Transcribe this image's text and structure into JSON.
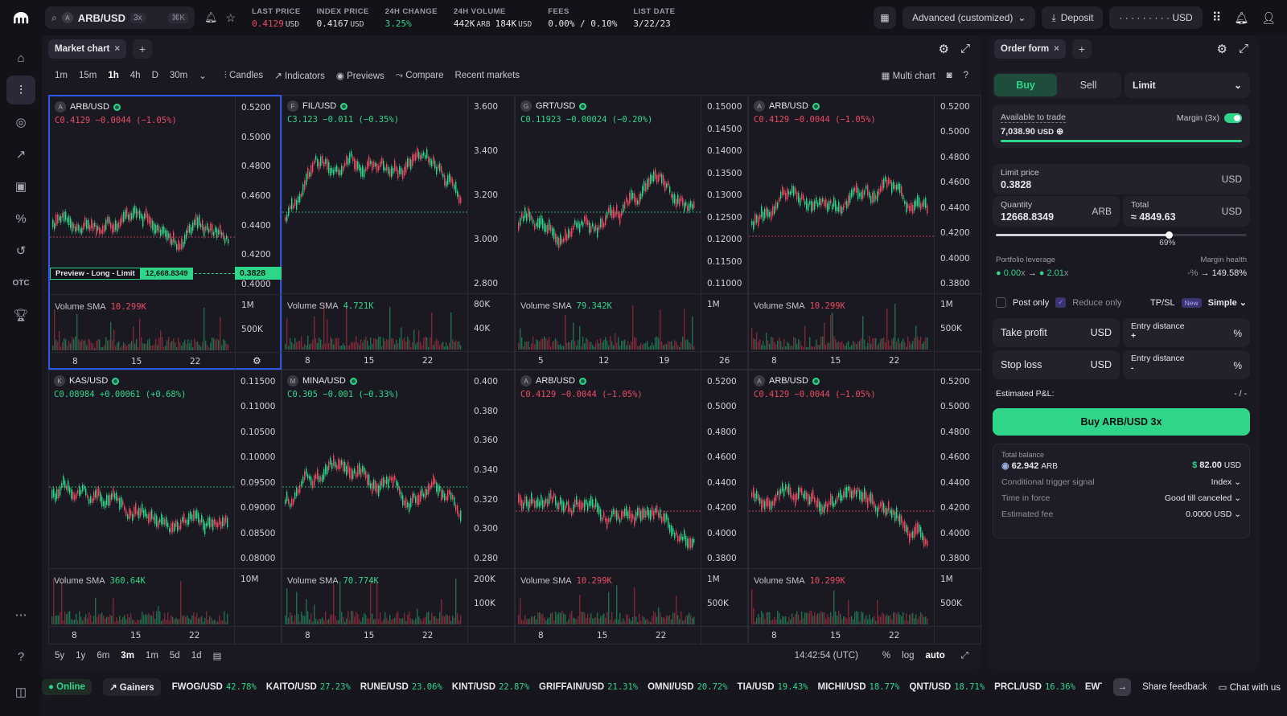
{
  "top": {
    "market": "ARB/USD",
    "leverage": "3x",
    "shortcut": "⌘K",
    "stats": [
      {
        "label": "LAST PRICE",
        "value": "0.4129",
        "unit": "USD",
        "cls": "red"
      },
      {
        "label": "INDEX PRICE",
        "value": "0.4167",
        "unit": "USD",
        "cls": ""
      },
      {
        "label": "24H CHANGE",
        "value": "3.25%",
        "unit": "",
        "cls": "green"
      },
      {
        "label": "24H VOLUME",
        "value": "442K",
        "unit": "ARB",
        "value2": "184K",
        "unit2": "USD",
        "cls": ""
      },
      {
        "label": "FEES",
        "value": "0.00% / 0.10%",
        "unit": "",
        "cls": ""
      },
      {
        "label": "LIST DATE",
        "value": "3/22/23",
        "unit": "",
        "cls": ""
      }
    ],
    "layout": "Advanced (customized)",
    "deposit": "Deposit",
    "balance": "· · · · · · · · · USD"
  },
  "chart": {
    "tab": "Market chart",
    "timeframes": [
      "1m",
      "15m",
      "1h",
      "4h",
      "D",
      "30m"
    ],
    "active_tf": "1h",
    "tools": [
      "Candles",
      "Indicators",
      "Previews",
      "Compare",
      "Recent markets"
    ],
    "multi": "Multi chart",
    "panes": [
      {
        "sym": "ARB/USD",
        "ohlc": "C0.4129 −0.0044 (−1.05%)",
        "cls": "red",
        "ticks": [
          "0.5200",
          "0.5000",
          "0.4800",
          "0.4600",
          "0.4400",
          "0.4200",
          "0.4000"
        ],
        "vol": "Volume SMA",
        "volv": "10.299K",
        "vcls": "red",
        "vticks": [
          "1M",
          "500K"
        ],
        "dates": [
          "8",
          "15",
          "22"
        ]
      },
      {
        "sym": "FIL/USD",
        "ohlc": "C3.123 −0.011 (−0.35%)",
        "cls": "green",
        "ticks": [
          "3.600",
          "3.400",
          "3.200",
          "3.000",
          "2.800"
        ],
        "vol": "Volume SMA",
        "volv": "4.721K",
        "vcls": "green",
        "vticks": [
          "80K",
          "40K"
        ],
        "dates": [
          "8",
          "15",
          "22"
        ]
      },
      {
        "sym": "GRT/USD",
        "ohlc": "C0.11923 −0.00024 (−0.20%)",
        "cls": "green",
        "ticks": [
          "0.15000",
          "0.14500",
          "0.14000",
          "0.13500",
          "0.13000",
          "0.12500",
          "0.12000",
          "0.11500",
          "0.11000"
        ],
        "vol": "Volume SMA",
        "volv": "79.342K",
        "vcls": "green",
        "vticks": [
          "1M"
        ],
        "dates": [
          "5",
          "12",
          "19",
          "26"
        ]
      },
      {
        "sym": "ARB/USD",
        "ohlc": "C0.4129 −0.0044 (−1.05%)",
        "cls": "red",
        "ticks": [
          "0.5200",
          "0.5000",
          "0.4800",
          "0.4600",
          "0.4400",
          "0.4200",
          "0.4000",
          "0.3800"
        ],
        "vol": "Volume SMA",
        "volv": "10.299K",
        "vcls": "red",
        "vticks": [
          "1M",
          "500K"
        ],
        "dates": [
          "8",
          "15",
          "22"
        ]
      },
      {
        "sym": "KAS/USD",
        "ohlc": "C0.08984 +0.00061 (+0.68%)",
        "cls": "green",
        "ticks": [
          "0.11500",
          "0.11000",
          "0.10500",
          "0.10000",
          "0.09500",
          "0.09000",
          "0.08500",
          "0.08000"
        ],
        "vol": "Volume SMA",
        "volv": "360.64K",
        "vcls": "green",
        "vticks": [
          "10M"
        ],
        "dates": [
          "8",
          "15",
          "22"
        ]
      },
      {
        "sym": "MINA/USD",
        "ohlc": "C0.305 −0.001 (−0.33%)",
        "cls": "green",
        "ticks": [
          "0.400",
          "0.380",
          "0.360",
          "0.340",
          "0.320",
          "0.300",
          "0.280"
        ],
        "vol": "Volume SMA",
        "volv": "70.774K",
        "vcls": "green",
        "vticks": [
          "200K",
          "100K"
        ],
        "dates": [
          "8",
          "15",
          "22"
        ]
      },
      {
        "sym": "ARB/USD",
        "ohlc": "C0.4129 −0.0044 (−1.05%)",
        "cls": "red",
        "ticks": [
          "0.5200",
          "0.5000",
          "0.4800",
          "0.4600",
          "0.4400",
          "0.4200",
          "0.4000",
          "0.3800"
        ],
        "vol": "Volume SMA",
        "volv": "10.299K",
        "vcls": "red",
        "vticks": [
          "1M",
          "500K"
        ],
        "dates": [
          "8",
          "15",
          "22"
        ]
      },
      {
        "sym": "ARB/USD",
        "ohlc": "C0.4129 −0.0044 (−1.05%)",
        "cls": "red",
        "ticks": [
          "0.5200",
          "0.5000",
          "0.4800",
          "0.4600",
          "0.4400",
          "0.4200",
          "0.4000",
          "0.3800"
        ],
        "vol": "Volume SMA",
        "volv": "10.299K",
        "vcls": "red",
        "vticks": [
          "1M",
          "500K"
        ],
        "dates": [
          "8",
          "15",
          "22"
        ]
      }
    ],
    "preview": "Preview - Long - Limit",
    "preview_qty": "12,668.8349",
    "preview_price": "0.3828",
    "ranges": [
      "5y",
      "1y",
      "6m",
      "3m",
      "1m",
      "5d",
      "1d"
    ],
    "active_range": "3m",
    "time": "14:42:54 (UTC)",
    "scale": [
      "%",
      "log",
      "auto"
    ]
  },
  "order": {
    "tab": "Order form",
    "buy": "Buy",
    "sell": "Sell",
    "type": "Limit",
    "avail_lbl": "Available to trade",
    "avail": "7,038.90",
    "avail_unit": "USD",
    "margin": "Margin (3x)",
    "limit_lbl": "Limit price",
    "limit": "0.3828",
    "usd": "USD",
    "qty_lbl": "Quantity",
    "qty": "12668.8349",
    "qty_unit": "ARB",
    "total_lbl": "Total",
    "total": "≈  4849.63",
    "slider_pct": "69%",
    "slider_frac": 0.69,
    "lev_lbl": "Portfolio leverage",
    "lev_from": "0.00",
    "lev_to": "2.01",
    "x": "x",
    "health_lbl": "Margin health",
    "health_from": "-%",
    "health_to": "149.58%",
    "post": "Post only",
    "reduce": "Reduce only",
    "tpsl": "TP/SL",
    "new": "New",
    "simple": "Simple",
    "tp": "Take profit",
    "sl": "Stop loss",
    "entry": "Entry distance",
    "pct": "%",
    "plus": "+",
    "minus": "-",
    "pnl_lbl": "Estimated P&L:",
    "pnl": "- / -",
    "submit": "Buy ARB/USD 3x",
    "tb_lbl": "Total balance",
    "tb_arb": "62.942",
    "tb_arb_unit": "ARB",
    "tb_usd": "82.00",
    "tb_usd_unit": "USD",
    "rows": [
      {
        "k": "Conditional trigger signal",
        "v": "Index"
      },
      {
        "k": "Time in force",
        "v": "Good till canceled"
      },
      {
        "k": "Estimated fee",
        "v": "0.0000 USD"
      }
    ]
  },
  "footer": {
    "online": "Online",
    "gainers": "Gainers",
    "tickers": [
      {
        "s": "FWOG/USD",
        "p": "42.78%"
      },
      {
        "s": "KAITO/USD",
        "p": "27.23%"
      },
      {
        "s": "RUNE/USD",
        "p": "23.06%"
      },
      {
        "s": "KINT/USD",
        "p": "22.87%"
      },
      {
        "s": "GRIFFAIN/USD",
        "p": "21.31%"
      },
      {
        "s": "OMNI/USD",
        "p": "20.72%"
      },
      {
        "s": "TIA/USD",
        "p": "19.43%"
      },
      {
        "s": "MICHI/USD",
        "p": "18.77%"
      },
      {
        "s": "QNT/USD",
        "p": "18.71%"
      },
      {
        "s": "PRCL/USD",
        "p": "16.36%"
      },
      {
        "s": "EWT/USD",
        "p": ""
      }
    ],
    "feedback": "Share feedback",
    "chat": "Chat with us"
  },
  "colors": {
    "green": "#2fd68a",
    "red": "#ea4b63",
    "blue": "#2b5ae8"
  }
}
